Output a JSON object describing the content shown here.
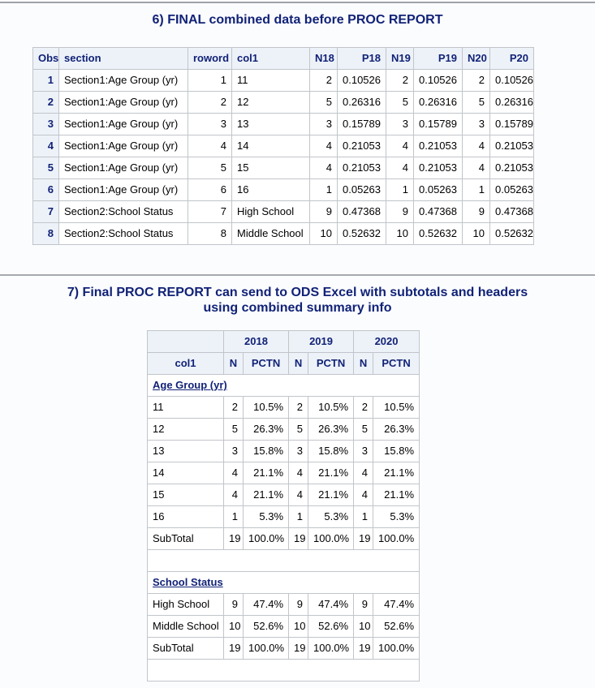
{
  "colors": {
    "title_text": "#112277",
    "header_bg": "#edf2f9",
    "header_text": "#112277",
    "cell_border": "#c1c5ca",
    "body_text": "#000000",
    "page_bg": "#fbfcfe"
  },
  "section6": {
    "title": "6) FINAL combined data before PROC REPORT",
    "table": {
      "columns": [
        {
          "label": "Obs",
          "header_align": "center",
          "body_align": "right",
          "rowheader": true
        },
        {
          "label": "section",
          "header_align": "left",
          "body_align": "left",
          "rowheader": false
        },
        {
          "label": "roword",
          "header_align": "right",
          "body_align": "right",
          "rowheader": false
        },
        {
          "label": "col1",
          "header_align": "left",
          "body_align": "left",
          "rowheader": false
        },
        {
          "label": "N18",
          "header_align": "right",
          "body_align": "right",
          "rowheader": false
        },
        {
          "label": "P18",
          "header_align": "right",
          "body_align": "right",
          "rowheader": false
        },
        {
          "label": "N19",
          "header_align": "right",
          "body_align": "right",
          "rowheader": false
        },
        {
          "label": "P19",
          "header_align": "right",
          "body_align": "right",
          "rowheader": false
        },
        {
          "label": "N20",
          "header_align": "right",
          "body_align": "right",
          "rowheader": false
        },
        {
          "label": "P20",
          "header_align": "right",
          "body_align": "right",
          "rowheader": false
        }
      ],
      "rows": [
        [
          "1",
          "Section1:Age Group (yr)",
          "1",
          "11",
          "2",
          "0.10526",
          "2",
          "0.10526",
          "2",
          "0.10526"
        ],
        [
          "2",
          "Section1:Age Group (yr)",
          "2",
          "12",
          "5",
          "0.26316",
          "5",
          "0.26316",
          "5",
          "0.26316"
        ],
        [
          "3",
          "Section1:Age Group (yr)",
          "3",
          "13",
          "3",
          "0.15789",
          "3",
          "0.15789",
          "3",
          "0.15789"
        ],
        [
          "4",
          "Section1:Age Group (yr)",
          "4",
          "14",
          "4",
          "0.21053",
          "4",
          "0.21053",
          "4",
          "0.21053"
        ],
        [
          "5",
          "Section1:Age Group (yr)",
          "5",
          "15",
          "4",
          "0.21053",
          "4",
          "0.21053",
          "4",
          "0.21053"
        ],
        [
          "6",
          "Section1:Age Group (yr)",
          "6",
          "16",
          "1",
          "0.05263",
          "1",
          "0.05263",
          "1",
          "0.05263"
        ],
        [
          "7",
          "Section2:School Status",
          "7",
          "High School",
          "9",
          "0.47368",
          "9",
          "0.47368",
          "9",
          "0.47368"
        ],
        [
          "8",
          "Section2:School Status",
          "8",
          "Middle School",
          "10",
          "0.52632",
          "10",
          "0.52632",
          "10",
          "0.52632"
        ]
      ]
    }
  },
  "section7": {
    "title_line1": "7) Final PROC REPORT can send to ODS Excel with subtotals and headers",
    "title_line2": "using combined summary info",
    "table": {
      "year_headers": [
        "2018",
        "2019",
        "2020"
      ],
      "col_headers": [
        "col1",
        "N",
        "PCTN",
        "N",
        "PCTN",
        "N",
        "PCTN"
      ],
      "groups": [
        {
          "heading": "Age Group (yr)",
          "rows": [
            [
              "11",
              "2",
              "10.5%",
              "2",
              "10.5%",
              "2",
              "10.5%"
            ],
            [
              "12",
              "5",
              "26.3%",
              "5",
              "26.3%",
              "5",
              "26.3%"
            ],
            [
              "13",
              "3",
              "15.8%",
              "3",
              "15.8%",
              "3",
              "15.8%"
            ],
            [
              "14",
              "4",
              "21.1%",
              "4",
              "21.1%",
              "4",
              "21.1%"
            ],
            [
              "15",
              "4",
              "21.1%",
              "4",
              "21.1%",
              "4",
              "21.1%"
            ],
            [
              "16",
              "1",
              "5.3%",
              "1",
              "5.3%",
              "1",
              "5.3%"
            ],
            [
              "SubTotal",
              "19",
              "100.0%",
              "19",
              "100.0%",
              "19",
              "100.0%"
            ]
          ]
        },
        {
          "heading": "School Status",
          "rows": [
            [
              "High School",
              "9",
              "47.4%",
              "9",
              "47.4%",
              "9",
              "47.4%"
            ],
            [
              "Middle School",
              "10",
              "52.6%",
              "10",
              "52.6%",
              "10",
              "52.6%"
            ],
            [
              "SubTotal",
              "19",
              "100.0%",
              "19",
              "100.0%",
              "19",
              "100.0%"
            ]
          ]
        }
      ]
    }
  }
}
